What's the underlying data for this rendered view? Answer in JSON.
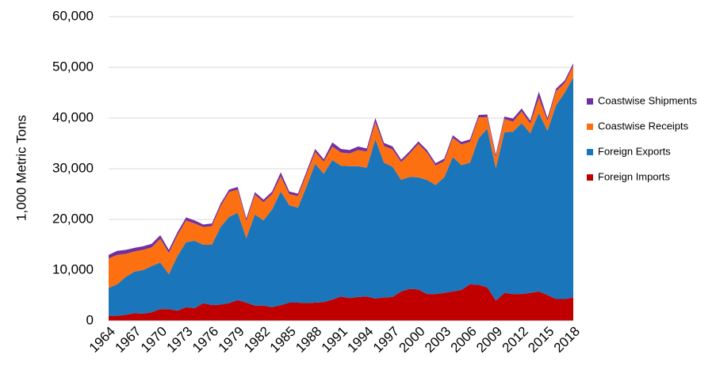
{
  "chart_data": {
    "type": "stacked-area",
    "y_label": "1,000 Metric Tons",
    "x": [
      1964,
      1965,
      1966,
      1967,
      1968,
      1969,
      1970,
      1971,
      1972,
      1973,
      1974,
      1975,
      1976,
      1977,
      1978,
      1979,
      1980,
      1981,
      1982,
      1983,
      1984,
      1985,
      1986,
      1987,
      1988,
      1989,
      1990,
      1991,
      1992,
      1993,
      1994,
      1995,
      1996,
      1997,
      1998,
      1999,
      2000,
      2001,
      2002,
      2003,
      2004,
      2005,
      2006,
      2007,
      2008,
      2009,
      2010,
      2011,
      2012,
      2013,
      2014,
      2015,
      2016,
      2017,
      2018
    ],
    "xlim": [
      1964,
      2018
    ],
    "xticks": [
      1964,
      1967,
      1970,
      1973,
      1976,
      1979,
      1982,
      1985,
      1988,
      1991,
      1994,
      1997,
      2000,
      2003,
      2006,
      2009,
      2012,
      2015,
      2018
    ],
    "ylim": [
      0,
      60000
    ],
    "yticks": [
      0,
      {
        "value": 10000,
        "label": "10,000"
      },
      {
        "value": 20000,
        "label": "20,000"
      },
      {
        "value": 30000,
        "label": "30,000"
      },
      {
        "value": 40000,
        "label": "40,000"
      },
      {
        "value": 50000,
        "label": "50,000"
      },
      {
        "value": 60000,
        "label": "60,000"
      }
    ],
    "grid": true,
    "legend": "right",
    "series": [
      {
        "name": "Foreign Imports",
        "color": "#c00000",
        "values": [
          1000,
          1000,
          1200,
          1500,
          1400,
          1700,
          2300,
          2300,
          2000,
          2700,
          2500,
          3500,
          3100,
          3200,
          3500,
          4100,
          3600,
          3000,
          3000,
          2700,
          3100,
          3600,
          3600,
          3500,
          3600,
          3700,
          4200,
          4800,
          4500,
          4700,
          4800,
          4400,
          4600,
          4700,
          5800,
          6300,
          6200,
          5300,
          5300,
          5500,
          5800,
          6100,
          7200,
          7100,
          6600,
          4000,
          5500,
          5300,
          5300,
          5500,
          5800,
          5100,
          4300,
          4300,
          4600
        ]
      },
      {
        "name": "Foreign Exports",
        "color": "#1b75bb",
        "values": [
          5500,
          6200,
          7500,
          8200,
          8600,
          9100,
          9200,
          6900,
          10800,
          12800,
          13300,
          11500,
          11900,
          15300,
          17000,
          17200,
          12700,
          18000,
          16800,
          19300,
          22400,
          19200,
          18700,
          23000,
          27400,
          25300,
          27500,
          25800,
          26000,
          25800,
          25400,
          31400,
          26600,
          25700,
          22000,
          22100,
          22100,
          22500,
          21500,
          22800,
          26500,
          24600,
          24000,
          28900,
          31300,
          26100,
          31700,
          32000,
          33700,
          31500,
          35200,
          32400,
          38200,
          40700,
          43400
        ]
      },
      {
        "name": "Coastwise Receipts",
        "color": "#fd7012",
        "values": [
          5800,
          5800,
          4500,
          4000,
          4000,
          3700,
          4700,
          4200,
          4100,
          4300,
          3400,
          3500,
          3700,
          4100,
          4900,
          4600,
          3400,
          3900,
          3600,
          3000,
          3000,
          2200,
          2300,
          2500,
          2300,
          2400,
          2700,
          2600,
          2500,
          3200,
          3200,
          3400,
          3300,
          3400,
          3500,
          4600,
          6600,
          5400,
          3800,
          3200,
          3800,
          4100,
          4100,
          4100,
          2300,
          2200,
          2600,
          2000,
          2300,
          1900,
          3000,
          2000,
          2800,
          1900,
          2300
        ]
      },
      {
        "name": "Coastwise Shipments",
        "color": "#7030a0",
        "values": [
          700,
          800,
          800,
          700,
          700,
          700,
          700,
          600,
          600,
          600,
          600,
          500,
          500,
          500,
          500,
          500,
          500,
          500,
          500,
          500,
          800,
          500,
          500,
          500,
          600,
          500,
          800,
          700,
          700,
          700,
          600,
          800,
          600,
          600,
          500,
          500,
          500,
          500,
          500,
          500,
          500,
          500,
          500,
          500,
          500,
          500,
          500,
          600,
          600,
          600,
          1200,
          500,
          500,
          500,
          500
        ]
      }
    ]
  }
}
